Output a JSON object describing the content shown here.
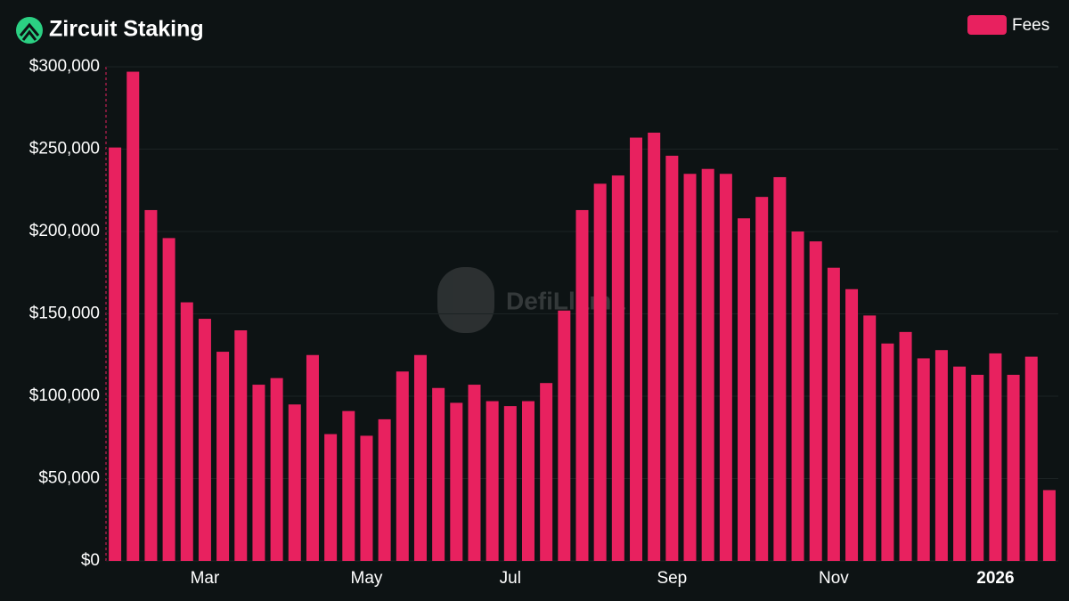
{
  "chart_data": {
    "type": "bar",
    "title": "Zircuit Staking",
    "watermark": "DefiLlama",
    "categories": [
      null,
      null,
      null,
      null,
      null,
      "Mar",
      null,
      null,
      null,
      null,
      null,
      null,
      null,
      null,
      "May",
      null,
      null,
      null,
      null,
      null,
      null,
      null,
      "Jul",
      null,
      null,
      null,
      null,
      null,
      null,
      null,
      null,
      "Sep",
      null,
      null,
      null,
      null,
      null,
      null,
      null,
      null,
      "Nov",
      null,
      null,
      null,
      null,
      null,
      null,
      null,
      null,
      "2026",
      null,
      null,
      null
    ],
    "series": [
      {
        "name": "Fees",
        "color": "#e8215f",
        "values": [
          251000,
          297000,
          213000,
          196000,
          157000,
          147000,
          127000,
          140000,
          107000,
          111000,
          95000,
          125000,
          77000,
          91000,
          76000,
          86000,
          115000,
          125000,
          105000,
          96000,
          107000,
          97000,
          94000,
          97000,
          108000,
          152000,
          213000,
          229000,
          234000,
          257000,
          260000,
          246000,
          235000,
          238000,
          235000,
          208000,
          221000,
          233000,
          200000,
          194000,
          178000,
          165000,
          149000,
          132000,
          139000,
          123000,
          128000,
          118000,
          113000,
          126000,
          113000,
          124000,
          43000
        ]
      }
    ],
    "ylim": [
      0,
      300000
    ],
    "yticks": [
      {
        "value": 0,
        "label": "$0"
      },
      {
        "value": 50000,
        "label": "$50,000"
      },
      {
        "value": 100000,
        "label": "$100,000"
      },
      {
        "value": 150000,
        "label": "$150,000"
      },
      {
        "value": 200000,
        "label": "$200,000"
      },
      {
        "value": 250000,
        "label": "$250,000"
      },
      {
        "value": 300000,
        "label": "$300,000"
      }
    ],
    "grid": true
  }
}
